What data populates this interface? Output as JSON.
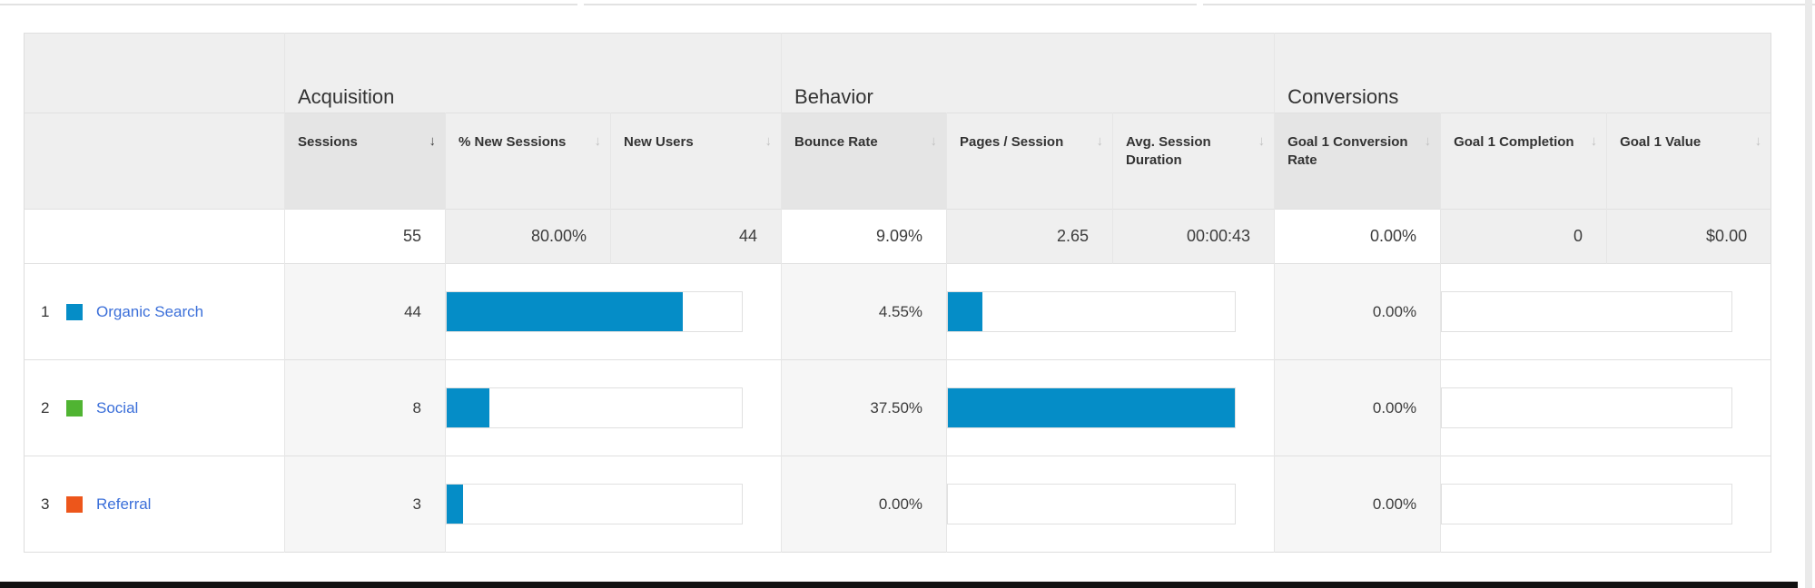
{
  "colors": {
    "bar_blue": "#058dc7",
    "organic_search": "#058dc7",
    "social": "#50b432",
    "referral": "#ed561b",
    "link_blue": "#3b6fd9"
  },
  "table": {
    "groups": [
      {
        "label": "Acquisition"
      },
      {
        "label": "Behavior"
      },
      {
        "label": "Conversions"
      }
    ],
    "columns": [
      {
        "label": "Sessions",
        "sorted": "desc"
      },
      {
        "label": "% New Sessions"
      },
      {
        "label": "New Users"
      },
      {
        "label": "Bounce Rate"
      },
      {
        "label": "Pages / Session"
      },
      {
        "label": "Avg. Session Duration"
      },
      {
        "label": "Goal 1 Conversion Rate"
      },
      {
        "label": "Goal 1 Completion"
      },
      {
        "label": "Goal 1 Value"
      }
    ],
    "summary": {
      "sessions": "55",
      "pct_new_sessions": "80.00%",
      "new_users": "44",
      "bounce_rate": "9.09%",
      "pages_per_session": "2.65",
      "avg_session_duration": "00:00:43",
      "goal1_conversion_rate": "0.00%",
      "goal1_completion": "0",
      "goal1_value": "$0.00"
    },
    "rows": [
      {
        "rank": "1",
        "channel": "Organic Search",
        "color": "#058dc7",
        "sessions": "44",
        "sessions_bar_pct": 80,
        "bounce_rate": "4.55%",
        "bounce_bar_pct": 12.1,
        "goal1_conversion_rate": "0.00%",
        "goal1_bar_pct": 0
      },
      {
        "rank": "2",
        "channel": "Social",
        "color": "#50b432",
        "sessions": "8",
        "sessions_bar_pct": 14.5,
        "bounce_rate": "37.50%",
        "bounce_bar_pct": 100,
        "goal1_conversion_rate": "0.00%",
        "goal1_bar_pct": 0
      },
      {
        "rank": "3",
        "channel": "Referral",
        "color": "#ed561b",
        "sessions": "3",
        "sessions_bar_pct": 5.5,
        "bounce_rate": "0.00%",
        "bounce_bar_pct": 0,
        "goal1_conversion_rate": "0.00%",
        "goal1_bar_pct": 0
      }
    ]
  },
  "chart_data": {
    "type": "bar",
    "categories": [
      "Organic Search",
      "Social",
      "Referral"
    ],
    "series": [
      {
        "name": "Sessions",
        "values": [
          44,
          8,
          3
        ],
        "scale_max": 55
      },
      {
        "name": "Bounce Rate (%)",
        "values": [
          4.55,
          37.5,
          0
        ],
        "scale_max": 37.5
      },
      {
        "name": "Goal 1 Conversion Rate (%)",
        "values": [
          0,
          0,
          0
        ],
        "scale_max": 100
      }
    ],
    "title": "",
    "legend_position": "in-row"
  }
}
